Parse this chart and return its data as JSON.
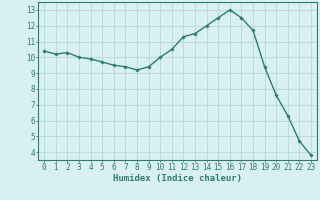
{
  "x": [
    0,
    1,
    2,
    3,
    4,
    5,
    6,
    7,
    8,
    9,
    10,
    11,
    12,
    13,
    14,
    15,
    16,
    17,
    18,
    19,
    20,
    21,
    22,
    23
  ],
  "y": [
    10.4,
    10.2,
    10.3,
    10.0,
    9.9,
    9.7,
    9.5,
    9.4,
    9.2,
    9.4,
    10.0,
    10.5,
    11.3,
    11.5,
    12.0,
    12.5,
    13.0,
    12.5,
    11.7,
    9.4,
    7.6,
    6.3,
    4.7,
    3.8
  ],
  "line_color": "#2e7d6e",
  "marker": "D",
  "marker_size": 1.8,
  "line_width": 1.0,
  "bg_color": "#d8f0f0",
  "grid_color": "#b8d8d8",
  "grid_minor_color": "#ccE8e8",
  "xlabel": "Humidex (Indice chaleur)",
  "xlabel_fontsize": 6.5,
  "xlabel_color": "#2e7d6e",
  "xtick_labels": [
    "0",
    "1",
    "2",
    "3",
    "4",
    "5",
    "6",
    "7",
    "8",
    "9",
    "10",
    "11",
    "12",
    "13",
    "14",
    "15",
    "16",
    "17",
    "18",
    "19",
    "20",
    "21",
    "22",
    "23"
  ],
  "ytick_min": 4,
  "ytick_max": 13,
  "ytick_step": 1,
  "xlim": [
    -0.5,
    23.5
  ],
  "ylim": [
    3.5,
    13.5
  ],
  "tick_fontsize": 5.5,
  "tick_color": "#2e7d6e",
  "spine_color": "#2e7d6e"
}
